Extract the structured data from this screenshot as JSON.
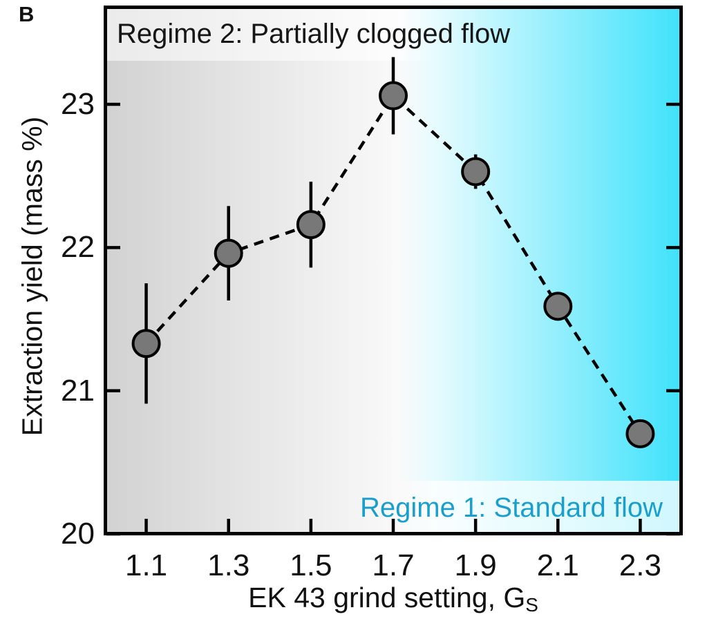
{
  "panel_label": "B",
  "annotations": {
    "regime2": "Regime 2: Partially clogged flow",
    "regime1": "Regime 1: Standard flow"
  },
  "chart_data": {
    "type": "scatter",
    "title": "",
    "xlabel": "EK 43 grind setting, G",
    "xlabel_subscript": "S",
    "ylabel": "Extraction yield (mass %)",
    "x": [
      1.1,
      1.3,
      1.5,
      1.7,
      1.9,
      2.1,
      2.3
    ],
    "y": [
      21.33,
      21.96,
      22.16,
      23.06,
      22.53,
      21.59,
      20.7
    ],
    "y_err": [
      0.42,
      0.33,
      0.3,
      0.27,
      0.12,
      0.06,
      0.05
    ],
    "x_ticks": [
      1.1,
      1.3,
      1.5,
      1.7,
      1.9,
      2.1,
      2.3
    ],
    "x_tick_labels": [
      "1.1",
      "1.3",
      "1.5",
      "1.7",
      "1.9",
      "2.1",
      "2.3"
    ],
    "y_ticks": [
      20,
      21,
      22,
      23
    ],
    "y_tick_labels": [
      "20",
      "21",
      "22",
      "23"
    ],
    "xlim": [
      1.0,
      2.4
    ],
    "ylim": [
      20,
      23.68
    ],
    "line_style": "dashed",
    "marker": "circle",
    "grid": false,
    "legend": "none",
    "colors": {
      "marker_fill": "#787878",
      "marker_stroke": "#000000",
      "line": "#000000",
      "axis": "#000000",
      "regime1_text": "#1a9fcc",
      "regime2_text": "#161616",
      "gray_band_edge": "#d2d2d2",
      "cyan_band_edge": "#40e2fb"
    },
    "regions": [
      {
        "name": "Regime 2: Partially clogged flow",
        "side": "left",
        "style": "gray-gradient"
      },
      {
        "name": "Regime 1: Standard flow",
        "side": "right",
        "style": "cyan-gradient"
      }
    ]
  }
}
